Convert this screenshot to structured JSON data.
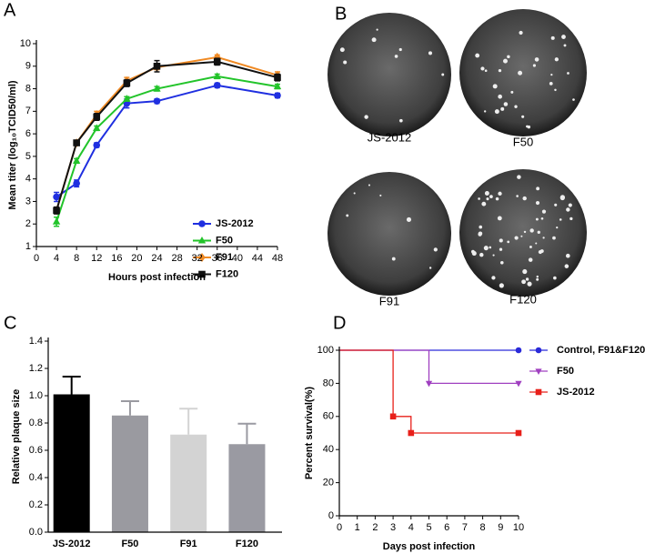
{
  "chart_data": [
    {
      "panel": "A",
      "type": "line",
      "x_label": "Hours post infection",
      "y_label": "Mean titer (log₁₀TCID50/ml)",
      "x": [
        4,
        8,
        12,
        18,
        24,
        36,
        48
      ],
      "xlim": [
        0,
        48
      ],
      "xticks": [
        0,
        4,
        8,
        12,
        16,
        20,
        24,
        28,
        32,
        36,
        40,
        44,
        48
      ],
      "ylim": [
        1,
        10
      ],
      "yticks": [
        1,
        2,
        3,
        4,
        5,
        6,
        7,
        8,
        9,
        10
      ],
      "series": [
        {
          "name": "JS-2012",
          "color": "#1f2fe0",
          "marker": "circle",
          "values": [
            3.2,
            3.8,
            5.5,
            7.35,
            7.45,
            8.15,
            7.7
          ],
          "errors": [
            0.2,
            0.15,
            0.1,
            0.2,
            0.1,
            0.1,
            0.1
          ]
        },
        {
          "name": "F50",
          "color": "#22c42a",
          "marker": "triangle",
          "values": [
            2.1,
            4.8,
            6.25,
            7.55,
            8.0,
            8.55,
            8.1
          ],
          "errors": [
            0.2,
            0.1,
            0.1,
            0.1,
            0.1,
            0.1,
            0.1
          ]
        },
        {
          "name": "F91",
          "color": "#f08a24",
          "marker": "diamond",
          "values": [
            2.6,
            5.6,
            6.85,
            8.35,
            8.95,
            9.4,
            8.6
          ],
          "errors": [
            0.1,
            0.1,
            0.15,
            0.15,
            0.1,
            0.1,
            0.15
          ]
        },
        {
          "name": "F120",
          "color": "#111111",
          "marker": "square",
          "values": [
            2.6,
            5.6,
            6.75,
            8.25,
            9.0,
            9.2,
            8.5
          ],
          "errors": [
            0.15,
            0.1,
            0.15,
            0.15,
            0.25,
            0.15,
            0.15
          ]
        }
      ]
    },
    {
      "panel": "C",
      "type": "bar",
      "y_label": "Relative plaque size",
      "categories": [
        "JS-2012",
        "F50",
        "F91",
        "F120"
      ],
      "values": [
        1.01,
        0.855,
        0.715,
        0.645
      ],
      "errors": [
        0.13,
        0.105,
        0.19,
        0.15
      ],
      "colors": [
        "#000000",
        "#9a9aa0",
        "#d3d3d3",
        "#9a9aa2"
      ],
      "ylim": [
        0,
        1.4
      ],
      "yticks": [
        {
          "value": 0,
          "label": "0.0"
        },
        0.2,
        0.4,
        0.6,
        0.8,
        {
          "value": 1,
          "label": "1.0"
        },
        1.2,
        1.4
      ]
    },
    {
      "panel": "D",
      "type": "step",
      "x_label": "Days post infection",
      "y_label": "Percent survival(%)",
      "xlim": [
        0,
        10
      ],
      "xticks": [
        0,
        1,
        2,
        3,
        4,
        5,
        6,
        7,
        8,
        9,
        10
      ],
      "ylim": [
        0,
        100
      ],
      "yticks": [
        0,
        20,
        40,
        60,
        80,
        100
      ],
      "series": [
        {
          "name": "Control, F91&F120",
          "color": "#2b2bd9",
          "marker": "circle",
          "x": [
            0,
            10
          ],
          "values": [
            100,
            100
          ]
        },
        {
          "name": "F50",
          "color": "#a040c0",
          "marker": "triangle-down",
          "x": [
            0,
            5,
            10
          ],
          "values": [
            100,
            80,
            80
          ]
        },
        {
          "name": "JS-2012",
          "color": "#e8201a",
          "marker": "square",
          "x": [
            0,
            3,
            4,
            10
          ],
          "values": [
            100,
            60,
            50,
            50
          ]
        }
      ]
    }
  ],
  "plaque_panel": {
    "panel": "B",
    "labels": [
      "JS-2012",
      "F50",
      "F91",
      "F120"
    ]
  }
}
